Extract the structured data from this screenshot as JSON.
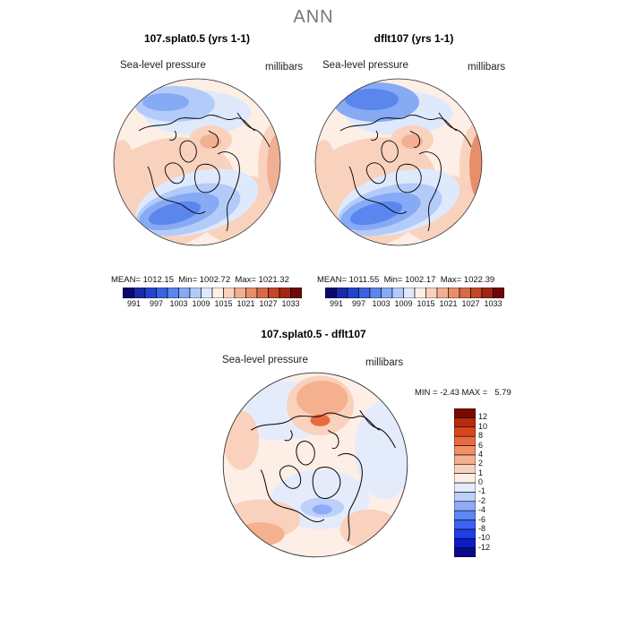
{
  "title": "ANN",
  "panels": [
    {
      "title": "107.splat0.5 (yrs 1-1)",
      "variable": "Sea-level pressure",
      "units": "millibars",
      "stats": {
        "mean_label": "MEAN=",
        "mean": "1012.15",
        "min_label": "Min=",
        "min": "1002.72",
        "max_label": "Max=",
        "max": "1021.32"
      }
    },
    {
      "title": "dflt107 (yrs 1-1)",
      "variable": "Sea-level pressure",
      "units": "millibars",
      "stats": {
        "mean_label": "MEAN=",
        "mean": "1011.55",
        "min_label": "Min=",
        "min": "1002.17",
        "max_label": "Max=",
        "max": "1022.39"
      }
    }
  ],
  "diff_panel": {
    "title": "107.splat0.5 - dflt107",
    "variable": "Sea-level pressure",
    "units": "millibars",
    "min_label": "MIN =",
    "min": "-2.43",
    "max_label": "MAX =",
    "max": "5.79"
  },
  "abs_colorbar": {
    "colors": [
      "#0a0a6e",
      "#1b28a8",
      "#2244cc",
      "#3a63e0",
      "#5a86ee",
      "#86aaf4",
      "#b3cbf8",
      "#dfe9fc",
      "#fdeee6",
      "#f9d2be",
      "#f2b092",
      "#e88e6a",
      "#d96a46",
      "#c24628",
      "#a02616",
      "#6e0808"
    ],
    "ticks": [
      "991",
      "997",
      "1003",
      "1009",
      "1015",
      "1021",
      "1027",
      "1033"
    ]
  },
  "diff_colorbar": {
    "colors": [
      "#0a0a8a",
      "#0d1cc8",
      "#1e3ee6",
      "#3a62f2",
      "#5f86f5",
      "#8fabf7",
      "#bcd0fa",
      "#e4ecfc",
      "#fdeee6",
      "#f9d1bd",
      "#f5b18f",
      "#f08e66",
      "#e96a40",
      "#d9461e",
      "#b82a0c",
      "#7a0a00"
    ],
    "labels": [
      "12",
      "10",
      "8",
      "6",
      "4",
      "2",
      "1",
      "0",
      "-1",
      "-2",
      "-4",
      "-6",
      "-8",
      "-10",
      "-12"
    ]
  },
  "colors": {
    "land_outline": "#000000",
    "circle_outline": "#333333"
  }
}
